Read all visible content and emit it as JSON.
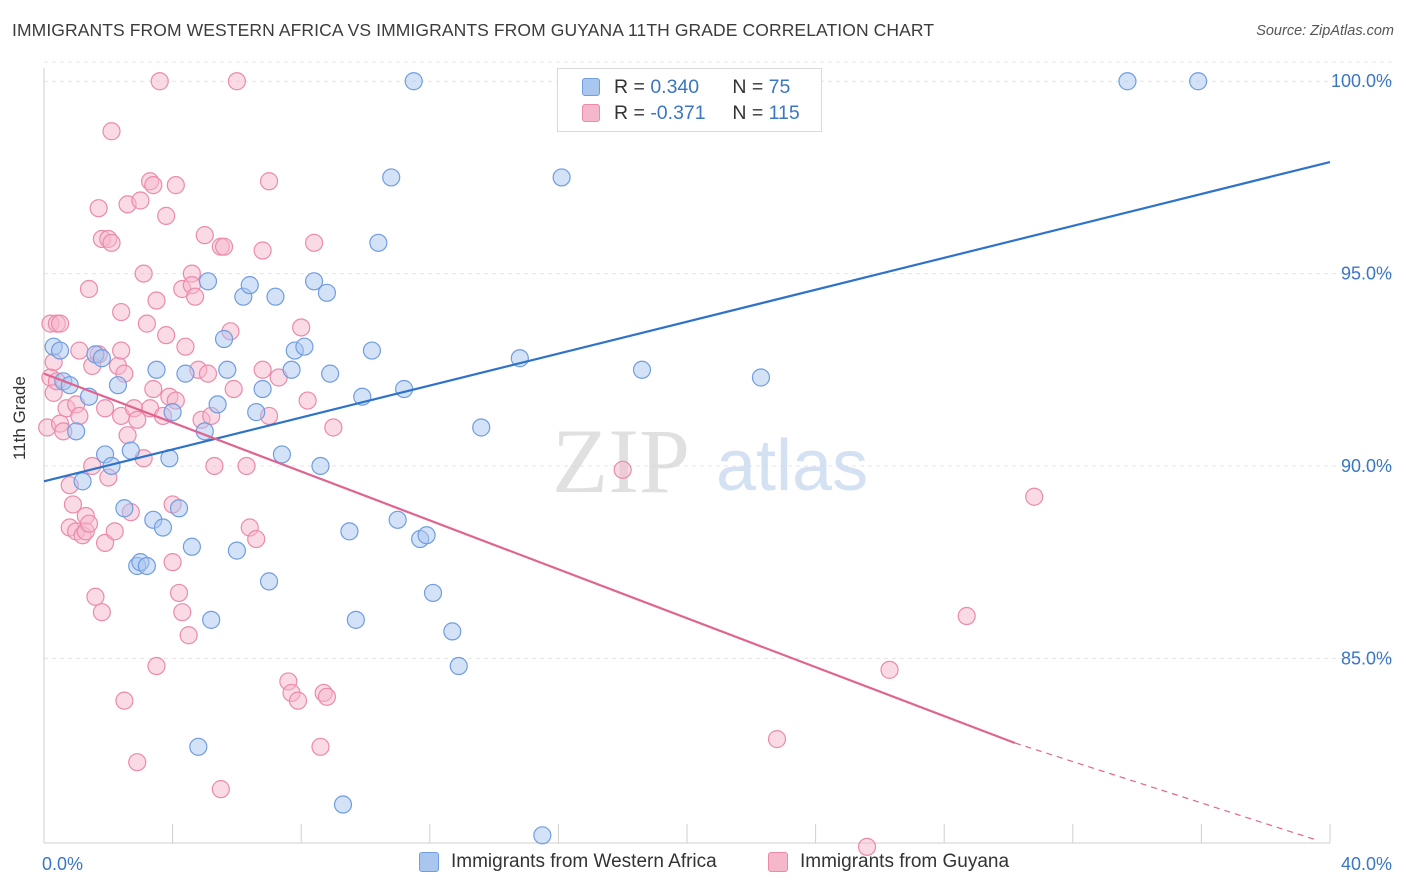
{
  "title": "IMMIGRANTS FROM WESTERN AFRICA VS IMMIGRANTS FROM GUYANA 11TH GRADE CORRELATION CHART",
  "source": "Source: ZipAtlas.com",
  "watermark": {
    "zip": "ZIP",
    "atlas": "atlas"
  },
  "legend_box": {
    "rows": [
      {
        "r_label": "R =",
        "r_value": "0.340",
        "n_label": "N =",
        "n_value": "75"
      },
      {
        "r_label": "R =",
        "r_value": "-0.371",
        "n_label": "N =",
        "n_value": "115"
      }
    ]
  },
  "bottom_legend": [
    "Immigrants from Western Africa",
    "Immigrants from Guyana"
  ],
  "colors": {
    "blue_fill": "#a9c6ef",
    "blue_stroke": "#6f9de0",
    "blue_line": "#2f73c9",
    "pink_fill": "#f5b8cb",
    "pink_stroke": "#eb8aaa",
    "pink_line": "#e0648f",
    "tick_label": "#3a76c4",
    "grid": "#e4e4e4"
  },
  "chart_data": {
    "type": "scatter",
    "title": "IMMIGRANTS FROM WESTERN AFRICA VS IMMIGRANTS FROM GUYANA 11TH GRADE CORRELATION CHART",
    "xlabel": "",
    "ylabel": "11th Grade",
    "xlim": [
      0,
      40
    ],
    "ylim": [
      80.2,
      100.5
    ],
    "x_tick_labels": [
      "0.0%",
      "40.0%"
    ],
    "y_ticks": [
      85,
      90,
      95,
      100
    ],
    "y_tick_labels": [
      "85.0%",
      "90.0%",
      "95.0%",
      "100.0%"
    ],
    "grid": true,
    "series": [
      {
        "name": "Immigrants from Western Africa",
        "r": 0.34,
        "n": 75,
        "trend": {
          "x": [
            0,
            40
          ],
          "y": [
            89.6,
            97.9
          ]
        },
        "points": [
          [
            0.3,
            93.1
          ],
          [
            0.5,
            93.0
          ],
          [
            0.6,
            92.2
          ],
          [
            0.8,
            92.1
          ],
          [
            1.0,
            90.9
          ],
          [
            1.2,
            89.6
          ],
          [
            1.4,
            91.8
          ],
          [
            1.6,
            92.9
          ],
          [
            1.8,
            92.8
          ],
          [
            1.9,
            90.3
          ],
          [
            2.1,
            90.0
          ],
          [
            2.3,
            92.1
          ],
          [
            2.5,
            88.9
          ],
          [
            2.7,
            90.4
          ],
          [
            2.9,
            87.4
          ],
          [
            3.0,
            87.5
          ],
          [
            3.2,
            87.4
          ],
          [
            3.4,
            88.6
          ],
          [
            3.5,
            92.5
          ],
          [
            3.7,
            88.4
          ],
          [
            3.9,
            90.2
          ],
          [
            4.0,
            91.4
          ],
          [
            4.2,
            88.9
          ],
          [
            4.4,
            92.4
          ],
          [
            4.6,
            87.9
          ],
          [
            4.8,
            82.7
          ],
          [
            5.0,
            90.9
          ],
          [
            5.1,
            94.8
          ],
          [
            5.2,
            86.0
          ],
          [
            5.4,
            91.6
          ],
          [
            5.6,
            93.3
          ],
          [
            5.7,
            92.5
          ],
          [
            6.0,
            87.8
          ],
          [
            6.2,
            94.4
          ],
          [
            6.4,
            94.7
          ],
          [
            6.6,
            91.4
          ],
          [
            6.8,
            92.0
          ],
          [
            7.0,
            87.0
          ],
          [
            7.2,
            94.4
          ],
          [
            7.4,
            90.3
          ],
          [
            7.7,
            92.5
          ],
          [
            7.8,
            93.0
          ],
          [
            8.1,
            93.1
          ],
          [
            8.4,
            94.8
          ],
          [
            8.6,
            90.0
          ],
          [
            8.8,
            94.5
          ],
          [
            8.9,
            92.4
          ],
          [
            9.3,
            81.2
          ],
          [
            9.5,
            88.3
          ],
          [
            9.7,
            86.0
          ],
          [
            9.9,
            91.8
          ],
          [
            10.2,
            93.0
          ],
          [
            10.4,
            95.8
          ],
          [
            10.8,
            97.5
          ],
          [
            11.0,
            88.6
          ],
          [
            11.2,
            92.0
          ],
          [
            11.5,
            100.0
          ],
          [
            11.7,
            88.1
          ],
          [
            11.9,
            88.2
          ],
          [
            12.1,
            86.7
          ],
          [
            12.7,
            85.7
          ],
          [
            12.9,
            84.8
          ],
          [
            13.6,
            91.0
          ],
          [
            14.8,
            92.8
          ],
          [
            15.5,
            80.4
          ],
          [
            16.1,
            97.5
          ],
          [
            16.5,
            100.0
          ],
          [
            18.6,
            92.5
          ],
          [
            22.3,
            92.3
          ],
          [
            33.7,
            100.0
          ],
          [
            35.9,
            100.0
          ]
        ]
      },
      {
        "name": "Immigrants from Guyana",
        "r": -0.371,
        "n": 115,
        "trend": {
          "x": [
            0,
            30.2
          ],
          "y": [
            92.4,
            82.8
          ]
        },
        "trend_dashed": {
          "x": [
            30.2,
            39.5
          ],
          "y": [
            82.8,
            80.3
          ]
        },
        "points": [
          [
            0.1,
            91.0
          ],
          [
            0.2,
            93.7
          ],
          [
            0.2,
            92.3
          ],
          [
            0.3,
            92.7
          ],
          [
            0.3,
            91.9
          ],
          [
            0.4,
            93.7
          ],
          [
            0.4,
            92.2
          ],
          [
            0.5,
            93.7
          ],
          [
            0.5,
            91.1
          ],
          [
            0.6,
            90.9
          ],
          [
            0.7,
            91.5
          ],
          [
            0.8,
            88.4
          ],
          [
            0.8,
            89.5
          ],
          [
            0.9,
            89.0
          ],
          [
            1.0,
            91.6
          ],
          [
            1.0,
            88.3
          ],
          [
            1.1,
            93.0
          ],
          [
            1.1,
            91.3
          ],
          [
            1.2,
            88.2
          ],
          [
            1.3,
            88.7
          ],
          [
            1.3,
            88.3
          ],
          [
            1.4,
            88.5
          ],
          [
            1.4,
            94.6
          ],
          [
            1.5,
            90.0
          ],
          [
            1.5,
            92.6
          ],
          [
            1.6,
            86.6
          ],
          [
            1.7,
            96.7
          ],
          [
            1.7,
            92.9
          ],
          [
            1.8,
            86.2
          ],
          [
            1.8,
            95.9
          ],
          [
            1.9,
            88.0
          ],
          [
            1.9,
            91.5
          ],
          [
            2.0,
            95.9
          ],
          [
            2.0,
            89.7
          ],
          [
            2.1,
            98.7
          ],
          [
            2.1,
            95.8
          ],
          [
            2.2,
            88.3
          ],
          [
            2.3,
            92.6
          ],
          [
            2.4,
            91.3
          ],
          [
            2.4,
            93.0
          ],
          [
            2.4,
            94.0
          ],
          [
            2.5,
            92.4
          ],
          [
            2.5,
            83.9
          ],
          [
            2.6,
            96.8
          ],
          [
            2.6,
            90.8
          ],
          [
            2.7,
            88.8
          ],
          [
            2.8,
            91.5
          ],
          [
            2.9,
            82.3
          ],
          [
            2.9,
            91.2
          ],
          [
            3.0,
            96.9
          ],
          [
            3.1,
            90.2
          ],
          [
            3.1,
            95.0
          ],
          [
            3.2,
            93.7
          ],
          [
            3.3,
            97.4
          ],
          [
            3.3,
            91.5
          ],
          [
            3.4,
            97.3
          ],
          [
            3.4,
            92.0
          ],
          [
            3.5,
            84.8
          ],
          [
            3.5,
            94.3
          ],
          [
            3.6,
            100.0
          ],
          [
            3.7,
            91.3
          ],
          [
            3.8,
            96.5
          ],
          [
            3.8,
            93.4
          ],
          [
            3.9,
            91.8
          ],
          [
            4.0,
            89.0
          ],
          [
            4.0,
            87.5
          ],
          [
            4.1,
            91.7
          ],
          [
            4.1,
            97.3
          ],
          [
            4.2,
            86.7
          ],
          [
            4.3,
            86.2
          ],
          [
            4.3,
            94.6
          ],
          [
            4.4,
            93.1
          ],
          [
            4.5,
            85.6
          ],
          [
            4.6,
            95.0
          ],
          [
            4.6,
            94.7
          ],
          [
            4.7,
            94.4
          ],
          [
            4.8,
            92.5
          ],
          [
            4.9,
            91.2
          ],
          [
            5.0,
            96.0
          ],
          [
            5.1,
            92.4
          ],
          [
            5.2,
            91.3
          ],
          [
            5.3,
            90.0
          ],
          [
            5.5,
            81.6
          ],
          [
            5.5,
            95.7
          ],
          [
            5.6,
            95.7
          ],
          [
            5.8,
            93.5
          ],
          [
            5.9,
            92.0
          ],
          [
            6.0,
            100.0
          ],
          [
            6.3,
            90.0
          ],
          [
            6.4,
            88.4
          ],
          [
            6.6,
            88.1
          ],
          [
            6.8,
            95.6
          ],
          [
            6.8,
            92.5
          ],
          [
            7.0,
            91.3
          ],
          [
            7.0,
            97.4
          ],
          [
            7.3,
            92.3
          ],
          [
            7.6,
            84.4
          ],
          [
            7.7,
            84.1
          ],
          [
            7.9,
            83.9
          ],
          [
            8.0,
            93.6
          ],
          [
            8.2,
            91.7
          ],
          [
            8.4,
            95.8
          ],
          [
            8.6,
            82.7
          ],
          [
            8.7,
            84.1
          ],
          [
            8.8,
            84.0
          ],
          [
            9.0,
            91.0
          ],
          [
            18.0,
            89.9
          ],
          [
            22.8,
            82.9
          ],
          [
            25.6,
            80.1
          ],
          [
            26.3,
            84.7
          ],
          [
            28.7,
            86.1
          ],
          [
            30.8,
            89.2
          ]
        ]
      }
    ]
  }
}
